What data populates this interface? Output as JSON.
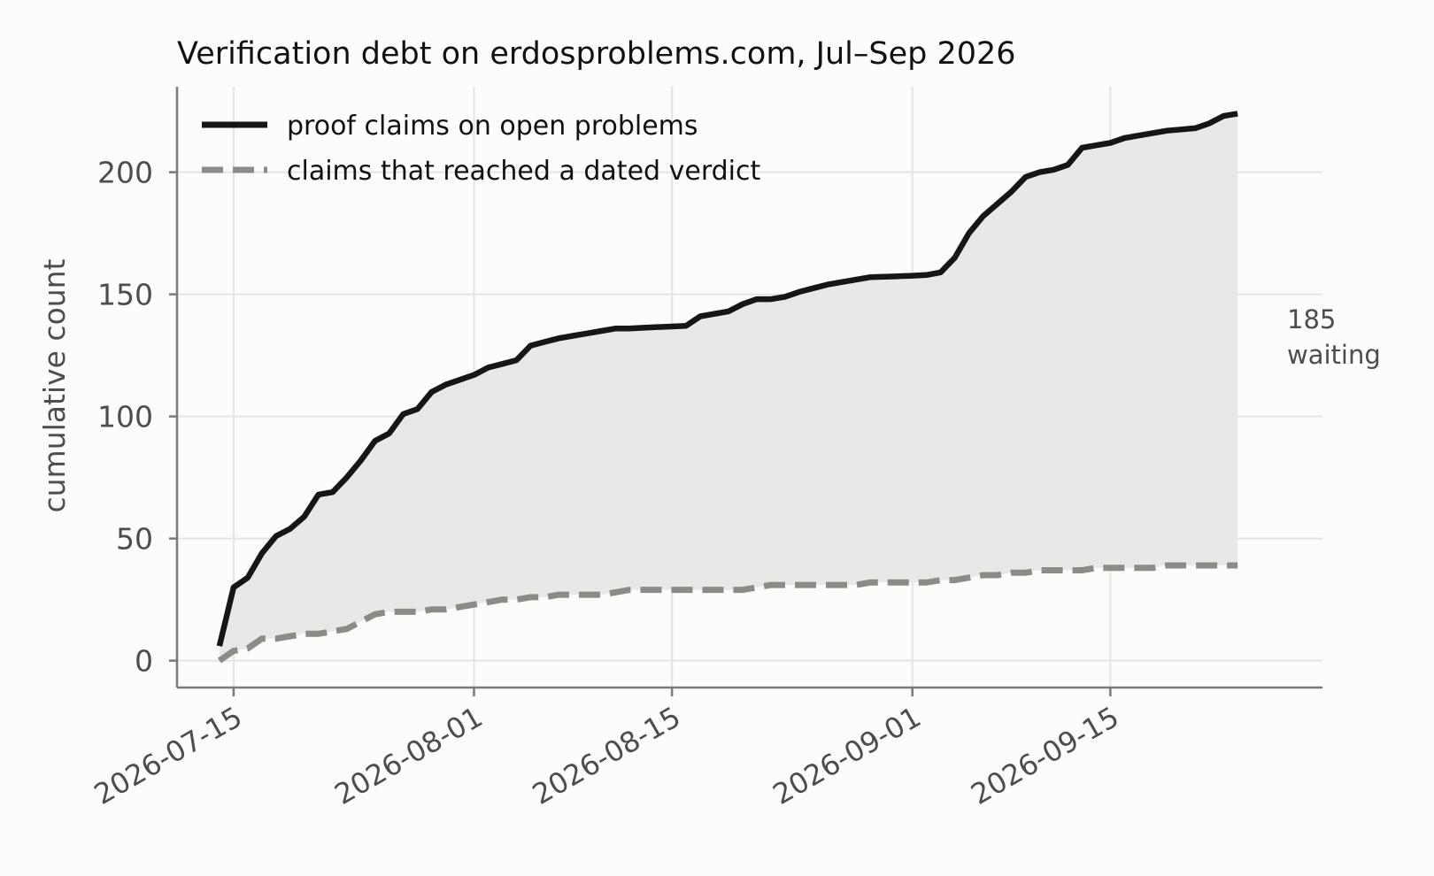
{
  "chart_data": {
    "type": "line",
    "title": "Verification debt on erdosproblems.com, Jul–Sep 2026",
    "xlabel": "",
    "ylabel": "cumulative count",
    "xlim": [
      "2026-07-11",
      "2026-09-30"
    ],
    "ylim": [
      -11,
      235
    ],
    "x_ticks": [
      "2026-07-15",
      "2026-08-01",
      "2026-08-15",
      "2026-09-01",
      "2026-09-15"
    ],
    "y_ticks": [
      0,
      50,
      100,
      150,
      200
    ],
    "grid": true,
    "legend_position": "top-left",
    "fill_between_series": true,
    "annotation": {
      "text_lines": [
        "185",
        "waiting"
      ],
      "anchor": "right of final values"
    },
    "colors": {
      "claims": "#161616",
      "verdicts": "#8c8c86",
      "gap_fill": "#e8e8e6",
      "grid": "#e4e4e2",
      "axis": "#7a7a7a",
      "tick_text": "#4d4d4d",
      "background": "#fcfcfa"
    },
    "series": [
      {
        "name": "proof claims on open problems",
        "style": "solid",
        "points": [
          [
            "2026-07-14",
            6
          ],
          [
            "2026-07-15",
            30
          ],
          [
            "2026-07-16",
            34
          ],
          [
            "2026-07-17",
            44
          ],
          [
            "2026-07-18",
            51
          ],
          [
            "2026-07-19",
            54
          ],
          [
            "2026-07-20",
            59
          ],
          [
            "2026-07-21",
            68
          ],
          [
            "2026-07-22",
            69
          ],
          [
            "2026-07-23",
            75
          ],
          [
            "2026-07-24",
            82
          ],
          [
            "2026-07-25",
            90
          ],
          [
            "2026-07-26",
            93
          ],
          [
            "2026-07-27",
            101
          ],
          [
            "2026-07-28",
            103
          ],
          [
            "2026-07-29",
            110
          ],
          [
            "2026-07-30",
            113
          ],
          [
            "2026-07-31",
            115
          ],
          [
            "2026-08-01",
            117
          ],
          [
            "2026-08-02",
            120
          ],
          [
            "2026-08-03",
            121.5
          ],
          [
            "2026-08-04",
            123
          ],
          [
            "2026-08-05",
            129
          ],
          [
            "2026-08-06",
            130.5
          ],
          [
            "2026-08-07",
            132
          ],
          [
            "2026-08-08",
            133
          ],
          [
            "2026-08-09",
            134
          ],
          [
            "2026-08-10",
            135
          ],
          [
            "2026-08-11",
            136
          ],
          [
            "2026-08-12",
            136
          ],
          [
            "2026-08-13",
            136.3
          ],
          [
            "2026-08-14",
            136.6
          ],
          [
            "2026-08-15",
            136.8
          ],
          [
            "2026-08-16",
            137.1
          ],
          [
            "2026-08-17",
            141
          ],
          [
            "2026-08-18",
            142
          ],
          [
            "2026-08-19",
            143
          ],
          [
            "2026-08-20",
            146
          ],
          [
            "2026-08-21",
            148
          ],
          [
            "2026-08-22",
            148
          ],
          [
            "2026-08-23",
            149
          ],
          [
            "2026-08-24",
            151
          ],
          [
            "2026-08-25",
            152.5
          ],
          [
            "2026-08-26",
            154
          ],
          [
            "2026-08-27",
            155
          ],
          [
            "2026-08-28",
            156
          ],
          [
            "2026-08-29",
            157
          ],
          [
            "2026-08-30",
            157.2
          ],
          [
            "2026-08-31",
            157.4
          ],
          [
            "2026-09-01",
            157.6
          ],
          [
            "2026-09-02",
            157.9
          ],
          [
            "2026-09-03",
            159
          ],
          [
            "2026-09-04",
            165
          ],
          [
            "2026-09-05",
            175
          ],
          [
            "2026-09-06",
            182
          ],
          [
            "2026-09-07",
            187
          ],
          [
            "2026-09-08",
            192
          ],
          [
            "2026-09-09",
            198
          ],
          [
            "2026-09-10",
            200
          ],
          [
            "2026-09-11",
            201
          ],
          [
            "2026-09-12",
            203
          ],
          [
            "2026-09-13",
            210
          ],
          [
            "2026-09-14",
            211
          ],
          [
            "2026-09-15",
            212
          ],
          [
            "2026-09-16",
            214
          ],
          [
            "2026-09-17",
            215
          ],
          [
            "2026-09-18",
            216
          ],
          [
            "2026-09-19",
            217
          ],
          [
            "2026-09-20",
            217.5
          ],
          [
            "2026-09-21",
            218
          ],
          [
            "2026-09-22",
            220
          ],
          [
            "2026-09-23",
            223
          ],
          [
            "2026-09-24",
            224
          ]
        ]
      },
      {
        "name": "claims that reached a dated verdict",
        "style": "dashed",
        "points": [
          [
            "2026-07-14",
            0
          ],
          [
            "2026-07-15",
            4
          ],
          [
            "2026-07-16",
            5
          ],
          [
            "2026-07-17",
            9
          ],
          [
            "2026-07-18",
            9
          ],
          [
            "2026-07-19",
            10
          ],
          [
            "2026-07-20",
            11
          ],
          [
            "2026-07-21",
            11
          ],
          [
            "2026-07-22",
            12
          ],
          [
            "2026-07-23",
            13
          ],
          [
            "2026-07-24",
            16
          ],
          [
            "2026-07-25",
            19
          ],
          [
            "2026-07-26",
            20
          ],
          [
            "2026-07-27",
            20
          ],
          [
            "2026-07-28",
            20
          ],
          [
            "2026-07-29",
            21
          ],
          [
            "2026-07-30",
            21
          ],
          [
            "2026-07-31",
            22
          ],
          [
            "2026-08-01",
            23
          ],
          [
            "2026-08-02",
            24
          ],
          [
            "2026-08-03",
            25
          ],
          [
            "2026-08-04",
            25
          ],
          [
            "2026-08-05",
            26
          ],
          [
            "2026-08-06",
            26
          ],
          [
            "2026-08-07",
            27
          ],
          [
            "2026-08-08",
            27
          ],
          [
            "2026-08-09",
            27
          ],
          [
            "2026-08-10",
            27
          ],
          [
            "2026-08-11",
            28
          ],
          [
            "2026-08-12",
            29
          ],
          [
            "2026-08-13",
            29
          ],
          [
            "2026-08-14",
            29
          ],
          [
            "2026-08-15",
            29
          ],
          [
            "2026-08-16",
            29
          ],
          [
            "2026-08-17",
            29
          ],
          [
            "2026-08-18",
            29
          ],
          [
            "2026-08-19",
            29
          ],
          [
            "2026-08-20",
            29
          ],
          [
            "2026-08-21",
            30
          ],
          [
            "2026-08-22",
            31
          ],
          [
            "2026-08-23",
            31
          ],
          [
            "2026-08-24",
            31
          ],
          [
            "2026-08-25",
            31
          ],
          [
            "2026-08-26",
            31
          ],
          [
            "2026-08-27",
            31
          ],
          [
            "2026-08-28",
            31
          ],
          [
            "2026-08-29",
            32
          ],
          [
            "2026-08-30",
            32
          ],
          [
            "2026-08-31",
            32
          ],
          [
            "2026-09-01",
            32
          ],
          [
            "2026-09-02",
            32
          ],
          [
            "2026-09-03",
            33
          ],
          [
            "2026-09-04",
            33
          ],
          [
            "2026-09-05",
            34
          ],
          [
            "2026-09-06",
            35
          ],
          [
            "2026-09-07",
            35
          ],
          [
            "2026-09-08",
            36
          ],
          [
            "2026-09-09",
            36
          ],
          [
            "2026-09-10",
            37
          ],
          [
            "2026-09-11",
            37
          ],
          [
            "2026-09-12",
            37
          ],
          [
            "2026-09-13",
            37
          ],
          [
            "2026-09-14",
            38
          ],
          [
            "2026-09-15",
            38
          ],
          [
            "2026-09-16",
            38
          ],
          [
            "2026-09-17",
            38
          ],
          [
            "2026-09-18",
            38
          ],
          [
            "2026-09-19",
            39
          ],
          [
            "2026-09-20",
            39
          ],
          [
            "2026-09-21",
            39
          ],
          [
            "2026-09-22",
            39
          ],
          [
            "2026-09-23",
            39
          ],
          [
            "2026-09-24",
            39
          ]
        ]
      }
    ]
  }
}
